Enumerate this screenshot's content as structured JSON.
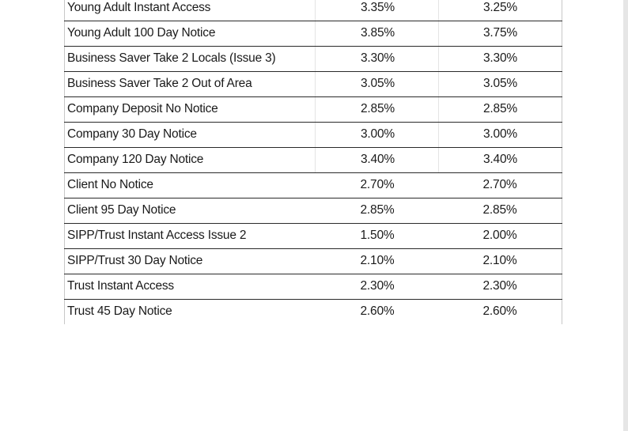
{
  "rates_table": {
    "rows": [
      {
        "name": "Young Adult Instant Access",
        "rate_a": "3.35%",
        "rate_b": "3.25%"
      },
      {
        "name": "Young Adult 100 Day Notice",
        "rate_a": "3.85%",
        "rate_b": "3.75%"
      },
      {
        "name": "Business Saver Take 2 Locals (Issue 3)",
        "rate_a": "3.30%",
        "rate_b": "3.30%"
      },
      {
        "name": "Business Saver Take 2 Out of Area",
        "rate_a": "3.05%",
        "rate_b": "3.05%"
      },
      {
        "name": "Company Deposit No Notice",
        "rate_a": "2.85%",
        "rate_b": "2.85%"
      },
      {
        "name": "Company 30 Day Notice",
        "rate_a": "3.00%",
        "rate_b": "3.00%"
      },
      {
        "name": "Company 120 Day Notice",
        "rate_a": "3.40%",
        "rate_b": "3.40%"
      },
      {
        "name": "Client No Notice",
        "rate_a": "2.70%",
        "rate_b": "2.70%"
      },
      {
        "name": "Client 95 Day Notice",
        "rate_a": "2.85%",
        "rate_b": "2.85%"
      },
      {
        "name": "SIPP/Trust Instant Access Issue 2",
        "rate_a": "1.50%",
        "rate_b": "2.00%"
      },
      {
        "name": "SIPP/Trust 30 Day Notice",
        "rate_a": "2.10%",
        "rate_b": "2.10%"
      },
      {
        "name": "Trust Instant Access",
        "rate_a": "2.30%",
        "rate_b": "2.30%"
      },
      {
        "name": "Trust 45 Day Notice",
        "rate_a": "2.60%",
        "rate_b": "2.60%"
      }
    ]
  }
}
